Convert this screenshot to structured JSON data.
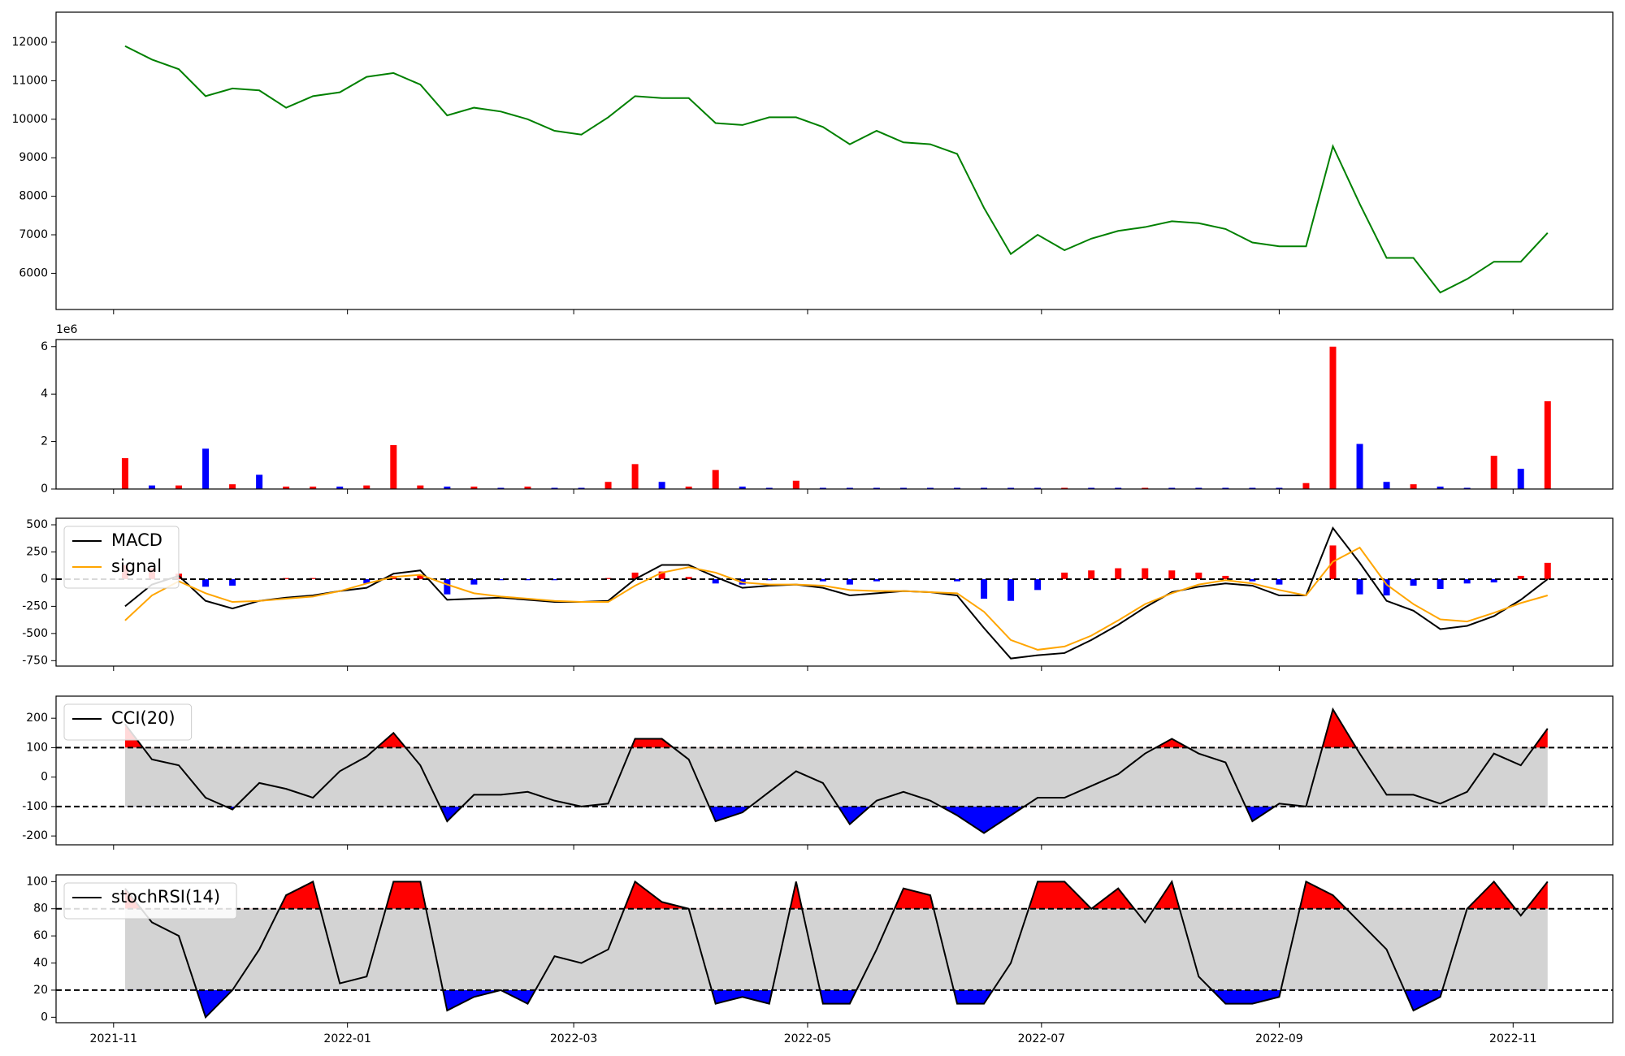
{
  "chart_data": [
    {
      "type": "line",
      "x": [
        "2021-11-04",
        "2021-11-11",
        "2021-11-18",
        "2021-11-25",
        "2021-12-02",
        "2021-12-09",
        "2021-12-16",
        "2021-12-23",
        "2021-12-30",
        "2022-01-06",
        "2022-01-13",
        "2022-01-20",
        "2022-01-27",
        "2022-02-03",
        "2022-02-10",
        "2022-02-17",
        "2022-02-24",
        "2022-03-03",
        "2022-03-10",
        "2022-03-17",
        "2022-03-24",
        "2022-03-31",
        "2022-04-07",
        "2022-04-14",
        "2022-04-21",
        "2022-04-28",
        "2022-05-05",
        "2022-05-12",
        "2022-05-19",
        "2022-05-26",
        "2022-06-02",
        "2022-06-09",
        "2022-06-16",
        "2022-06-23",
        "2022-06-30",
        "2022-07-07",
        "2022-07-14",
        "2022-07-21",
        "2022-07-28",
        "2022-08-04",
        "2022-08-11",
        "2022-08-18",
        "2022-08-25",
        "2022-09-01",
        "2022-09-08",
        "2022-09-15",
        "2022-09-22",
        "2022-09-29",
        "2022-10-06",
        "2022-10-13",
        "2022-10-20",
        "2022-10-27",
        "2022-11-03",
        "2022-11-10"
      ],
      "values": [
        11900,
        11550,
        11300,
        10600,
        10800,
        10750,
        10300,
        10600,
        10700,
        11100,
        11200,
        10900,
        10100,
        10300,
        10200,
        10000,
        9700,
        9600,
        10050,
        10600,
        10550,
        10550,
        9900,
        9850,
        10050,
        10050,
        9800,
        9350,
        9700,
        9400,
        9350,
        9100,
        7700,
        6500,
        7000,
        6600,
        6900,
        7100,
        7200,
        7350,
        7300,
        7150,
        6800,
        6700,
        6700,
        9300,
        7800,
        6400,
        6400,
        5500,
        5850,
        6300,
        6300,
        7050
      ],
      "color": "#008000",
      "xlim": [
        "2021-10-17",
        "2022-11-27"
      ],
      "ylim": [
        5060,
        12780
      ],
      "yticks": [
        6000,
        7000,
        8000,
        9000,
        10000,
        11000,
        12000
      ]
    },
    {
      "type": "bar",
      "x": [
        "2021-11-04",
        "2021-11-11",
        "2021-11-18",
        "2021-11-25",
        "2021-12-02",
        "2021-12-09",
        "2021-12-16",
        "2021-12-23",
        "2021-12-30",
        "2022-01-06",
        "2022-01-13",
        "2022-01-20",
        "2022-01-27",
        "2022-02-03",
        "2022-02-10",
        "2022-02-17",
        "2022-02-24",
        "2022-03-03",
        "2022-03-10",
        "2022-03-17",
        "2022-03-24",
        "2022-03-31",
        "2022-04-07",
        "2022-04-14",
        "2022-04-21",
        "2022-04-28",
        "2022-05-05",
        "2022-05-12",
        "2022-05-19",
        "2022-05-26",
        "2022-06-02",
        "2022-06-09",
        "2022-06-16",
        "2022-06-23",
        "2022-06-30",
        "2022-07-07",
        "2022-07-14",
        "2022-07-21",
        "2022-07-28",
        "2022-08-04",
        "2022-08-11",
        "2022-08-18",
        "2022-08-25",
        "2022-09-01",
        "2022-09-08",
        "2022-09-15",
        "2022-09-22",
        "2022-09-29",
        "2022-10-06",
        "2022-10-13",
        "2022-10-20",
        "2022-10-27",
        "2022-11-03",
        "2022-11-10"
      ],
      "values": [
        1.3,
        0.15,
        0.15,
        1.7,
        0.2,
        0.6,
        0.1,
        0.1,
        0.1,
        0.15,
        1.85,
        0.15,
        0.1,
        0.1,
        0.05,
        0.1,
        0.05,
        0.05,
        0.3,
        1.05,
        0.3,
        0.1,
        0.8,
        0.1,
        0.05,
        0.35,
        0.05,
        0.05,
        0.05,
        0.05,
        0.05,
        0.05,
        0.05,
        0.05,
        0.05,
        0.05,
        0.05,
        0.05,
        0.05,
        0.05,
        0.05,
        0.05,
        0.05,
        0.05,
        0.25,
        6.0,
        1.9,
        0.3,
        0.2,
        0.1,
        0.05,
        1.4,
        0.85,
        3.7
      ],
      "colors": [
        "#ff0000",
        "#0000ff",
        "#ff0000",
        "#0000ff",
        "#ff0000",
        "#0000ff",
        "#ff0000",
        "#ff0000",
        "#0000ff",
        "#ff0000",
        "#ff0000",
        "#ff0000",
        "#0000ff",
        "#ff0000",
        "#0000ff",
        "#ff0000",
        "#0000ff",
        "#0000ff",
        "#ff0000",
        "#ff0000",
        "#0000ff",
        "#ff0000",
        "#ff0000",
        "#0000ff",
        "#0000ff",
        "#ff0000",
        "#0000ff",
        "#0000ff",
        "#0000ff",
        "#0000ff",
        "#0000ff",
        "#0000ff",
        "#0000ff",
        "#0000ff",
        "#0000ff",
        "#ff0000",
        "#0000ff",
        "#0000ff",
        "#ff0000",
        "#0000ff",
        "#0000ff",
        "#0000ff",
        "#0000ff",
        "#0000ff",
        "#ff0000",
        "#ff0000",
        "#0000ff",
        "#0000ff",
        "#ff0000",
        "#0000ff",
        "#0000ff",
        "#ff0000",
        "#0000ff",
        "#ff0000"
      ],
      "y_offset_label": "1e6",
      "xlim": [
        "2021-10-17",
        "2022-11-27"
      ],
      "ylim": [
        0,
        6.3
      ],
      "yticks": [
        0,
        2,
        4,
        6
      ]
    },
    {
      "type": "line",
      "x": [
        "2021-11-04",
        "2021-11-11",
        "2021-11-18",
        "2021-11-25",
        "2021-12-02",
        "2021-12-09",
        "2021-12-16",
        "2021-12-23",
        "2021-12-30",
        "2022-01-06",
        "2022-01-13",
        "2022-01-20",
        "2022-01-27",
        "2022-02-03",
        "2022-02-10",
        "2022-02-17",
        "2022-02-24",
        "2022-03-03",
        "2022-03-10",
        "2022-03-17",
        "2022-03-24",
        "2022-03-31",
        "2022-04-07",
        "2022-04-14",
        "2022-04-21",
        "2022-04-28",
        "2022-05-05",
        "2022-05-12",
        "2022-05-19",
        "2022-05-26",
        "2022-06-02",
        "2022-06-09",
        "2022-06-16",
        "2022-06-23",
        "2022-06-30",
        "2022-07-07",
        "2022-07-14",
        "2022-07-21",
        "2022-07-28",
        "2022-08-04",
        "2022-08-11",
        "2022-08-18",
        "2022-08-25",
        "2022-09-01",
        "2022-09-08",
        "2022-09-15",
        "2022-09-22",
        "2022-09-29",
        "2022-10-06",
        "2022-10-13",
        "2022-10-20",
        "2022-10-27",
        "2022-11-03",
        "2022-11-10"
      ],
      "series": [
        {
          "type": "bar",
          "color": "#ff0000",
          "negative_color": "#0000ff",
          "values": [
            130,
            100,
            50,
            -70,
            -60,
            0,
            10,
            10,
            0,
            -40,
            30,
            40,
            -140,
            -50,
            -10,
            -10,
            -10,
            0,
            10,
            60,
            70,
            20,
            -40,
            -50,
            -10,
            0,
            -20,
            -50,
            -20,
            0,
            0,
            -20,
            -180,
            -200,
            -100,
            60,
            80,
            100,
            100,
            80,
            60,
            30,
            -20,
            -50,
            0,
            310,
            -140,
            -150,
            -60,
            -90,
            -40,
            -30,
            30,
            150
          ]
        },
        {
          "name": "MACD",
          "color": "#000000",
          "values": [
            -250,
            -50,
            30,
            -200,
            -270,
            -200,
            -170,
            -150,
            -110,
            -80,
            50,
            80,
            -190,
            -180,
            -170,
            -190,
            -210,
            -210,
            -200,
            0,
            130,
            130,
            20,
            -80,
            -60,
            -50,
            -80,
            -150,
            -130,
            -110,
            -120,
            -150,
            -450,
            -730,
            -700,
            -680,
            -560,
            -420,
            -260,
            -120,
            -70,
            -40,
            -60,
            -150,
            -150,
            470,
            150,
            -200,
            -290,
            -460,
            -430,
            -340,
            -190,
            0
          ]
        },
        {
          "name": "signal",
          "color": "#ffa500",
          "values": [
            -380,
            -150,
            -20,
            -130,
            -210,
            -200,
            -180,
            -160,
            -110,
            -40,
            20,
            40,
            -50,
            -130,
            -160,
            -180,
            -200,
            -210,
            -210,
            -60,
            60,
            110,
            60,
            -30,
            -50,
            -50,
            -60,
            -100,
            -110,
            -110,
            -120,
            -130,
            -300,
            -560,
            -650,
            -620,
            -520,
            -380,
            -230,
            -130,
            -50,
            -10,
            -40,
            -100,
            -150,
            160,
            290,
            -50,
            -230,
            -370,
            -390,
            -310,
            -220,
            -150
          ]
        }
      ],
      "hlines": [
        0
      ],
      "xlim": [
        "2021-10-17",
        "2022-11-27"
      ],
      "ylim": [
        -800,
        560
      ],
      "yticks": [
        -750,
        -500,
        -250,
        0,
        250,
        500
      ]
    },
    {
      "type": "line",
      "x": [
        "2021-11-04",
        "2021-11-11",
        "2021-11-18",
        "2021-11-25",
        "2021-12-02",
        "2021-12-09",
        "2021-12-16",
        "2021-12-23",
        "2021-12-30",
        "2022-01-06",
        "2022-01-13",
        "2022-01-20",
        "2022-01-27",
        "2022-02-03",
        "2022-02-10",
        "2022-02-17",
        "2022-02-24",
        "2022-03-03",
        "2022-03-10",
        "2022-03-17",
        "2022-03-24",
        "2022-03-31",
        "2022-04-07",
        "2022-04-14",
        "2022-04-21",
        "2022-04-28",
        "2022-05-05",
        "2022-05-12",
        "2022-05-19",
        "2022-05-26",
        "2022-06-02",
        "2022-06-09",
        "2022-06-16",
        "2022-06-23",
        "2022-06-30",
        "2022-07-07",
        "2022-07-14",
        "2022-07-21",
        "2022-07-28",
        "2022-08-04",
        "2022-08-11",
        "2022-08-18",
        "2022-08-25",
        "2022-09-01",
        "2022-09-08",
        "2022-09-15",
        "2022-09-22",
        "2022-09-29",
        "2022-10-06",
        "2022-10-13",
        "2022-10-20",
        "2022-10-27",
        "2022-11-03",
        "2022-11-10"
      ],
      "series": [
        {
          "name": "CCI(20)",
          "color": "#000000",
          "values": [
            180,
            60,
            40,
            -70,
            -110,
            -20,
            -40,
            -70,
            20,
            70,
            150,
            40,
            -150,
            -60,
            -60,
            -50,
            -80,
            -100,
            -90,
            130,
            130,
            60,
            -150,
            -120,
            -50,
            20,
            -20,
            -160,
            -80,
            -50,
            -80,
            -130,
            -190,
            -130,
            -70,
            -70,
            -30,
            10,
            80,
            130,
            80,
            50,
            -150,
            -90,
            -100,
            230,
            80,
            -60,
            -60,
            -90,
            -50,
            80,
            40,
            165
          ]
        }
      ],
      "hlines": [
        100,
        -100
      ],
      "fill": {
        "above": "#ff0000",
        "inside": "#d3d3d3",
        "below": "#0000ff"
      },
      "xlim": [
        "2021-10-17",
        "2022-11-27"
      ],
      "ylim": [
        -230,
        275
      ],
      "yticks": [
        -200,
        -100,
        0,
        100,
        200
      ]
    },
    {
      "type": "line",
      "x": [
        "2021-11-04",
        "2021-11-11",
        "2021-11-18",
        "2021-11-25",
        "2021-12-02",
        "2021-12-09",
        "2021-12-16",
        "2021-12-23",
        "2021-12-30",
        "2022-01-06",
        "2022-01-13",
        "2022-01-20",
        "2022-01-27",
        "2022-02-03",
        "2022-02-10",
        "2022-02-17",
        "2022-02-24",
        "2022-03-03",
        "2022-03-10",
        "2022-03-17",
        "2022-03-24",
        "2022-03-31",
        "2022-04-07",
        "2022-04-14",
        "2022-04-21",
        "2022-04-28",
        "2022-05-05",
        "2022-05-12",
        "2022-05-19",
        "2022-05-26",
        "2022-06-02",
        "2022-06-09",
        "2022-06-16",
        "2022-06-23",
        "2022-06-30",
        "2022-07-07",
        "2022-07-14",
        "2022-07-21",
        "2022-07-28",
        "2022-08-04",
        "2022-08-11",
        "2022-08-18",
        "2022-08-25",
        "2022-09-01",
        "2022-09-08",
        "2022-09-15",
        "2022-09-22",
        "2022-09-29",
        "2022-10-06",
        "2022-10-13",
        "2022-10-20",
        "2022-10-27",
        "2022-11-03",
        "2022-11-10"
      ],
      "series": [
        {
          "name": "stochRSI(14)",
          "color": "#000000",
          "values": [
            95,
            70,
            60,
            0,
            20,
            50,
            90,
            100,
            25,
            30,
            100,
            100,
            5,
            15,
            20,
            10,
            45,
            40,
            50,
            100,
            85,
            80,
            10,
            15,
            10,
            100,
            10,
            10,
            50,
            95,
            90,
            10,
            10,
            40,
            100,
            100,
            80,
            95,
            70,
            100,
            30,
            10,
            10,
            15,
            100,
            90,
            70,
            50,
            5,
            15,
            80,
            100,
            75,
            100
          ]
        }
      ],
      "hlines": [
        80,
        20
      ],
      "fill": {
        "above": "#ff0000",
        "inside": "#d3d3d3",
        "below": "#0000ff"
      },
      "xlim": [
        "2021-10-17",
        "2022-11-27"
      ],
      "ylim": [
        -4,
        105
      ],
      "yticks": [
        0,
        20,
        40,
        60,
        80,
        100
      ],
      "xticks": [
        {
          "value": "2021-11-01",
          "label": "2021-11"
        },
        {
          "value": "2022-01-01",
          "label": "2022-01"
        },
        {
          "value": "2022-03-01",
          "label": "2022-03"
        },
        {
          "value": "2022-05-01",
          "label": "2022-05"
        },
        {
          "value": "2022-07-01",
          "label": "2022-07"
        },
        {
          "value": "2022-09-01",
          "label": "2022-09"
        },
        {
          "value": "2022-11-01",
          "label": "2022-11"
        }
      ]
    }
  ]
}
